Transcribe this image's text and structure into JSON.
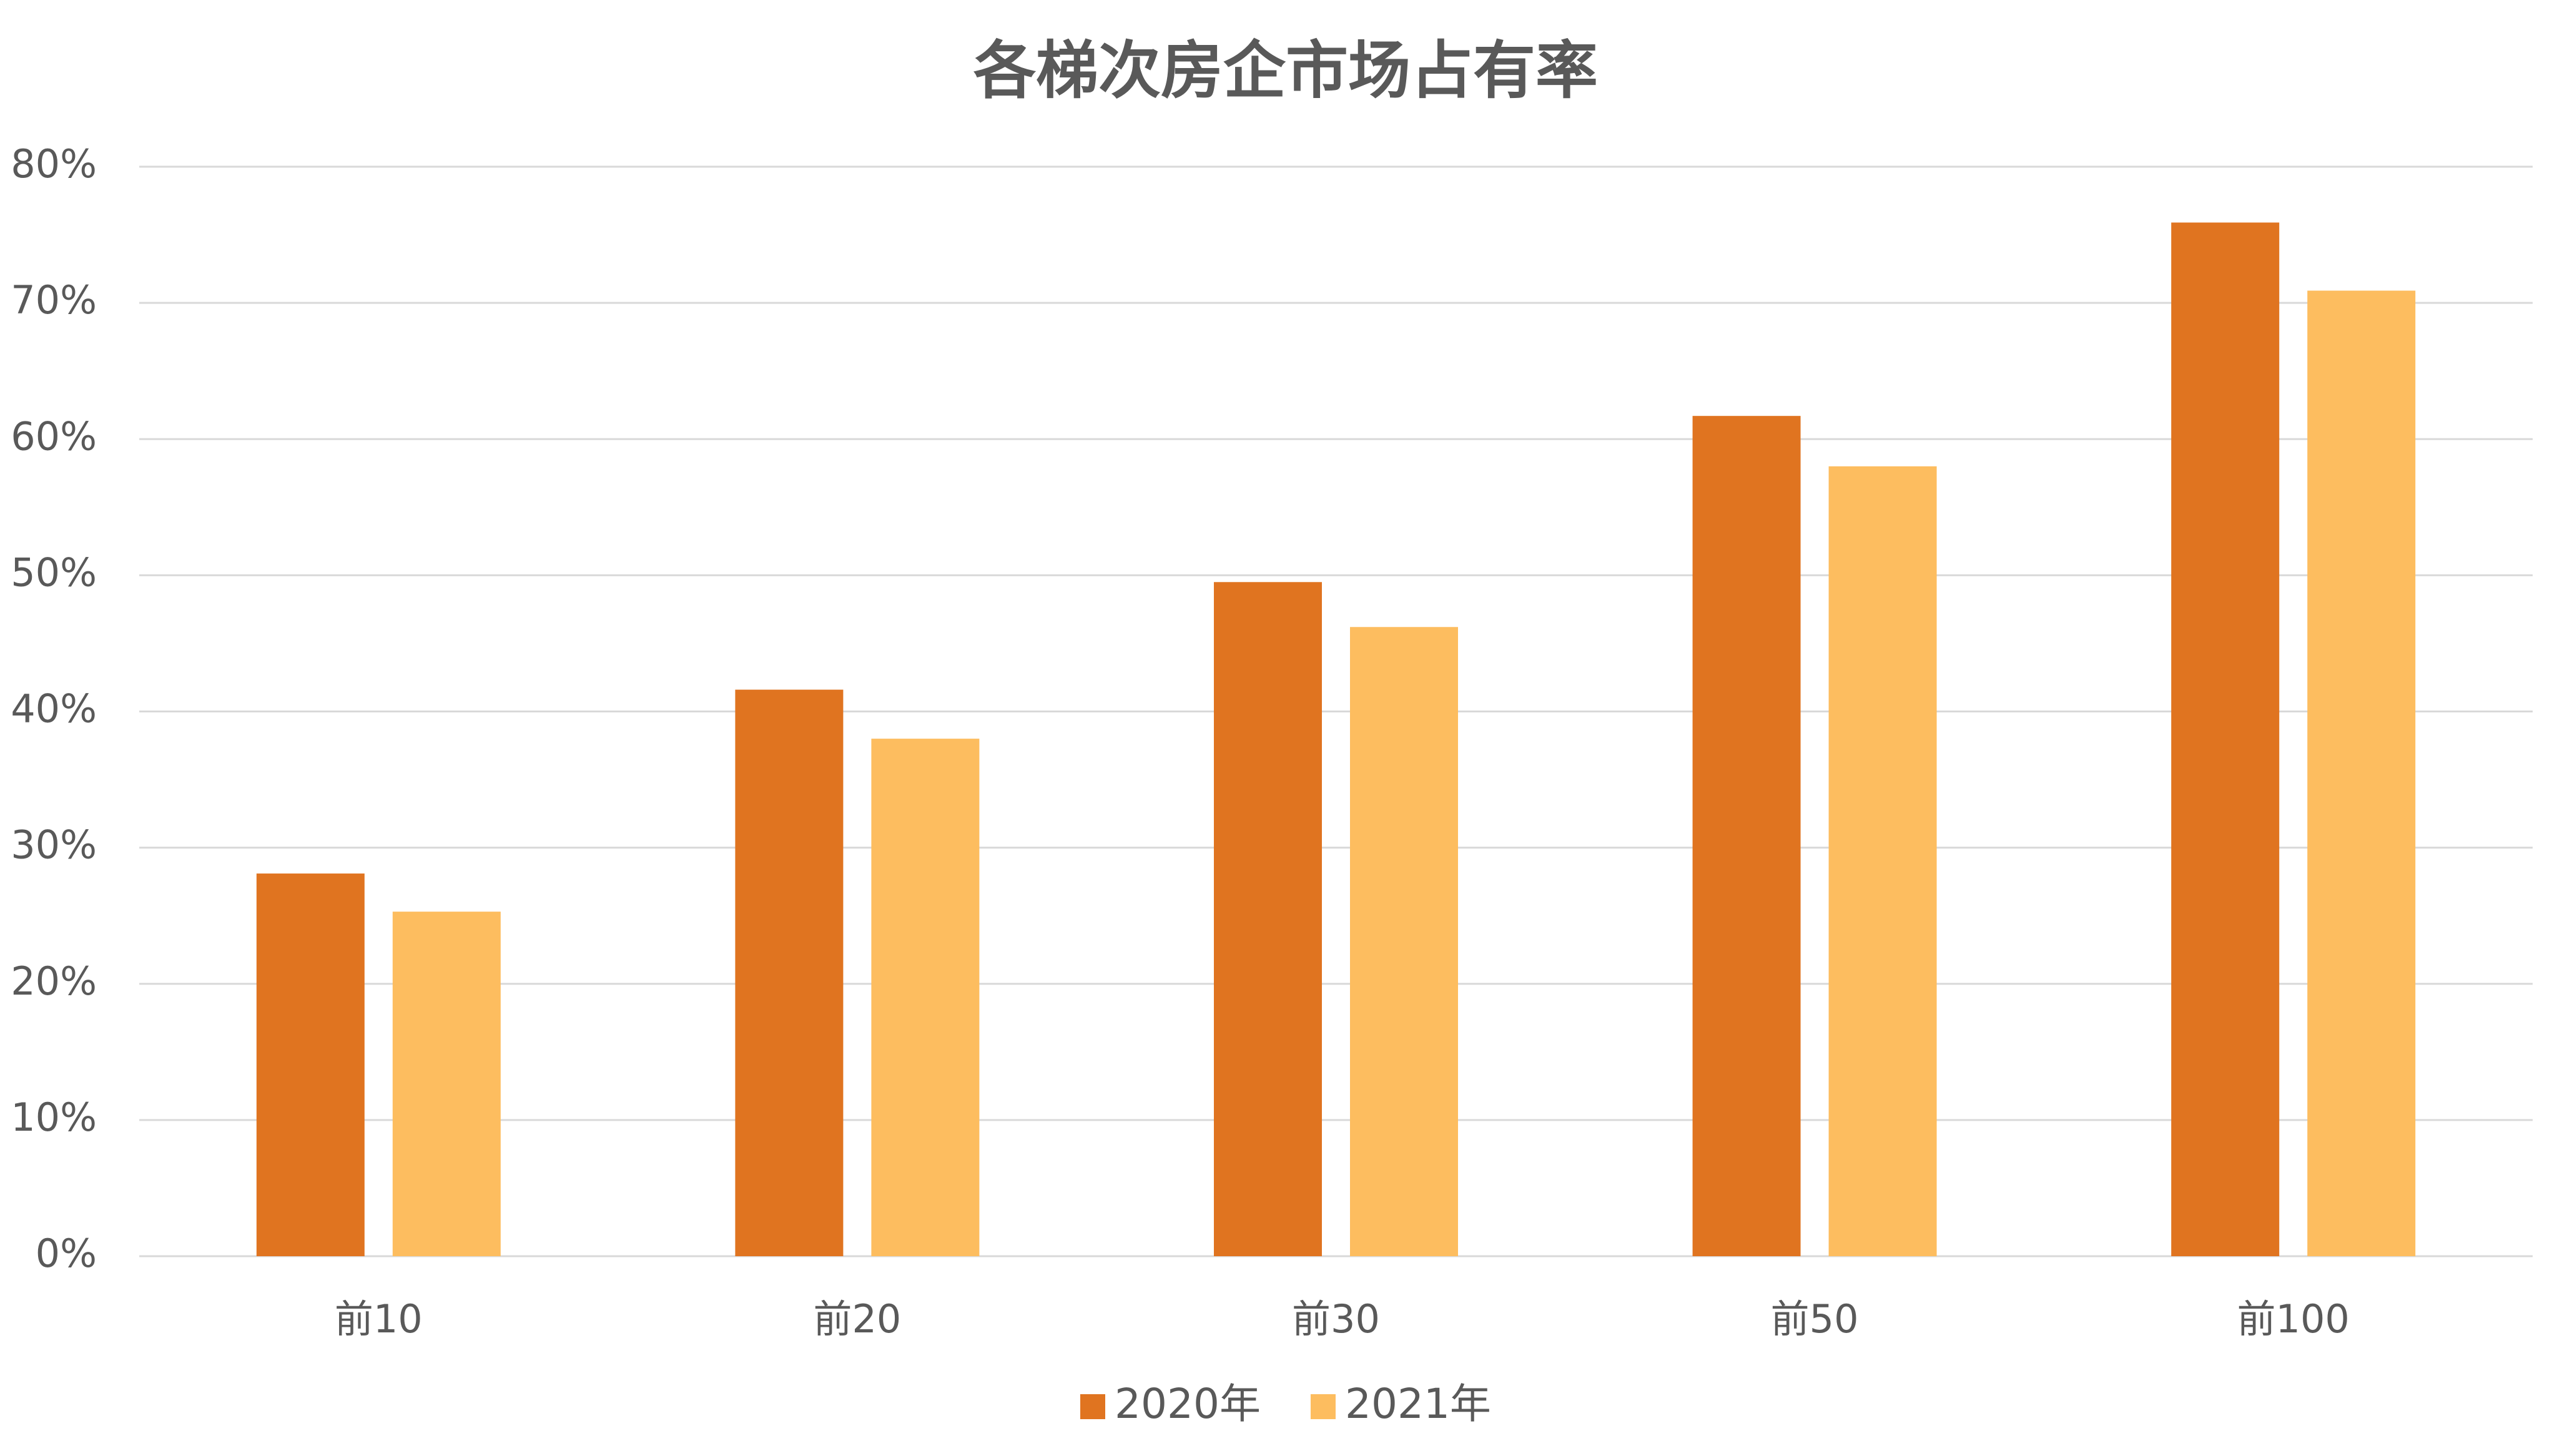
{
  "chart_data": {
    "type": "bar",
    "title": "各梯次房企市场占有率",
    "categories": [
      "前10",
      "前20",
      "前30",
      "前50",
      "前100"
    ],
    "series": [
      {
        "name": "2020年",
        "color": "#e07420",
        "values": [
          28.1,
          41.6,
          49.5,
          61.7,
          75.9
        ]
      },
      {
        "name": "2021年",
        "color": "#fdbd5f",
        "values": [
          25.3,
          38.0,
          46.2,
          58.0,
          70.9
        ]
      }
    ],
    "ylim": [
      0,
      80
    ],
    "yticks": [
      {
        "value": 0,
        "label": "0%"
      },
      {
        "value": 10,
        "label": "10%"
      },
      {
        "value": 20,
        "label": "20%"
      },
      {
        "value": 30,
        "label": "30%"
      },
      {
        "value": 40,
        "label": "40%"
      },
      {
        "value": 50,
        "label": "50%"
      },
      {
        "value": 60,
        "label": "60%"
      },
      {
        "value": 70,
        "label": "70%"
      },
      {
        "value": 80,
        "label": "80%"
      }
    ],
    "grid": true,
    "legend": "bottom"
  }
}
